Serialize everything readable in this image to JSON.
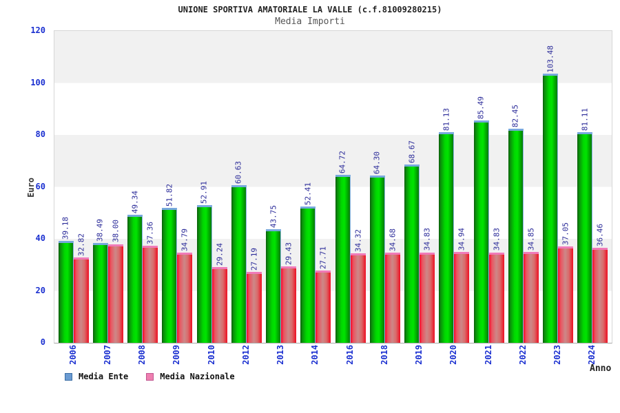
{
  "header": {
    "title": "UNIONE SPORTIVA AMATORIALE LA VALLE (c.f.81009280215)",
    "subtitle": "Media Importi"
  },
  "chart_data": {
    "type": "bar",
    "title": "Media Importi",
    "xlabel": "Anno",
    "ylabel": "Euro",
    "ylim": [
      0,
      120
    ],
    "yticks": [
      0,
      20,
      40,
      60,
      80,
      100,
      120
    ],
    "grid": "alternating-horizontal-bands-per-20",
    "legend_position": "bottom-left",
    "categories": [
      "2006",
      "2007",
      "2008",
      "2009",
      "2010",
      "2012",
      "2013",
      "2014",
      "2016",
      "2018",
      "2019",
      "2020",
      "2021",
      "2022",
      "2023",
      "2024"
    ],
    "series": [
      {
        "name": "Media Ente",
        "values": [
          39.18,
          38.49,
          49.34,
          51.82,
          52.91,
          60.63,
          43.75,
          52.41,
          64.72,
          64.3,
          68.67,
          81.13,
          85.49,
          82.45,
          103.48,
          81.11
        ]
      },
      {
        "name": "Media Nazionale",
        "values": [
          32.82,
          38.0,
          37.36,
          34.79,
          29.24,
          27.19,
          29.43,
          27.71,
          34.32,
          34.68,
          34.83,
          34.94,
          34.83,
          34.85,
          37.05,
          36.46
        ]
      }
    ]
  },
  "colors": {
    "ente_main": "#00e400",
    "ente_dark": "#0a5c0a",
    "ente_cap": "#76a8dc",
    "naz_main": "#ee0f22",
    "naz_mid": "#cd8888",
    "naz_cap": "#f07ab8",
    "legend_ente": "#6b9bd2",
    "legend_naz": "#ee7fb0",
    "value_label": "#2b2b99",
    "axis_blue": "#1a2fd0",
    "band_gray": "#f1f1f1"
  }
}
